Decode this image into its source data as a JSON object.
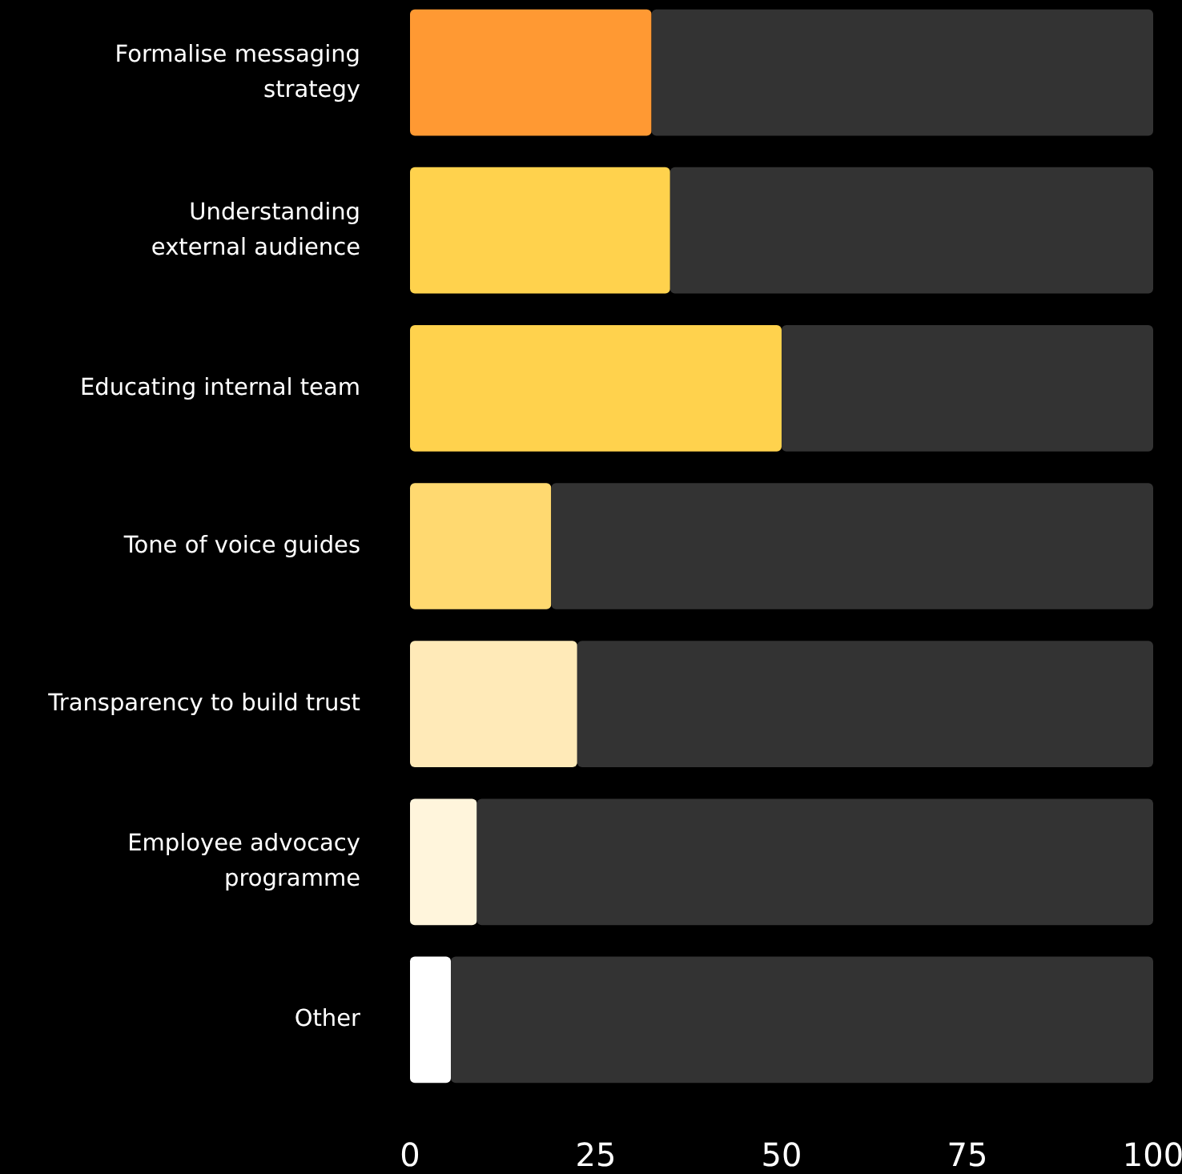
{
  "chart_data": {
    "type": "bar",
    "orientation": "horizontal",
    "stacked": true,
    "categories": [
      "Formalise messaging\nstrategy",
      "Understanding\nexternal audience",
      "Educating internal team",
      "Tone of voice guides",
      "Transparency to build trust",
      "Employee advocacy\nprogramme",
      "Other"
    ],
    "series": [
      {
        "colors": [
          "#ff9933",
          "#ffd24d",
          "#ffd24d",
          "#ffd970",
          "#ffeab8",
          "#fff5dc",
          "#ffffff"
        ],
        "values": [
          32.5,
          35,
          50,
          19,
          22.5,
          9,
          5.5
        ]
      },
      {
        "color": "#333333",
        "values": [
          67.5,
          65,
          50,
          81,
          77.5,
          91,
          94.5
        ]
      }
    ],
    "xlim": [
      0,
      100
    ],
    "xticks": [
      0,
      25,
      50,
      75,
      100
    ],
    "grid": false
  }
}
